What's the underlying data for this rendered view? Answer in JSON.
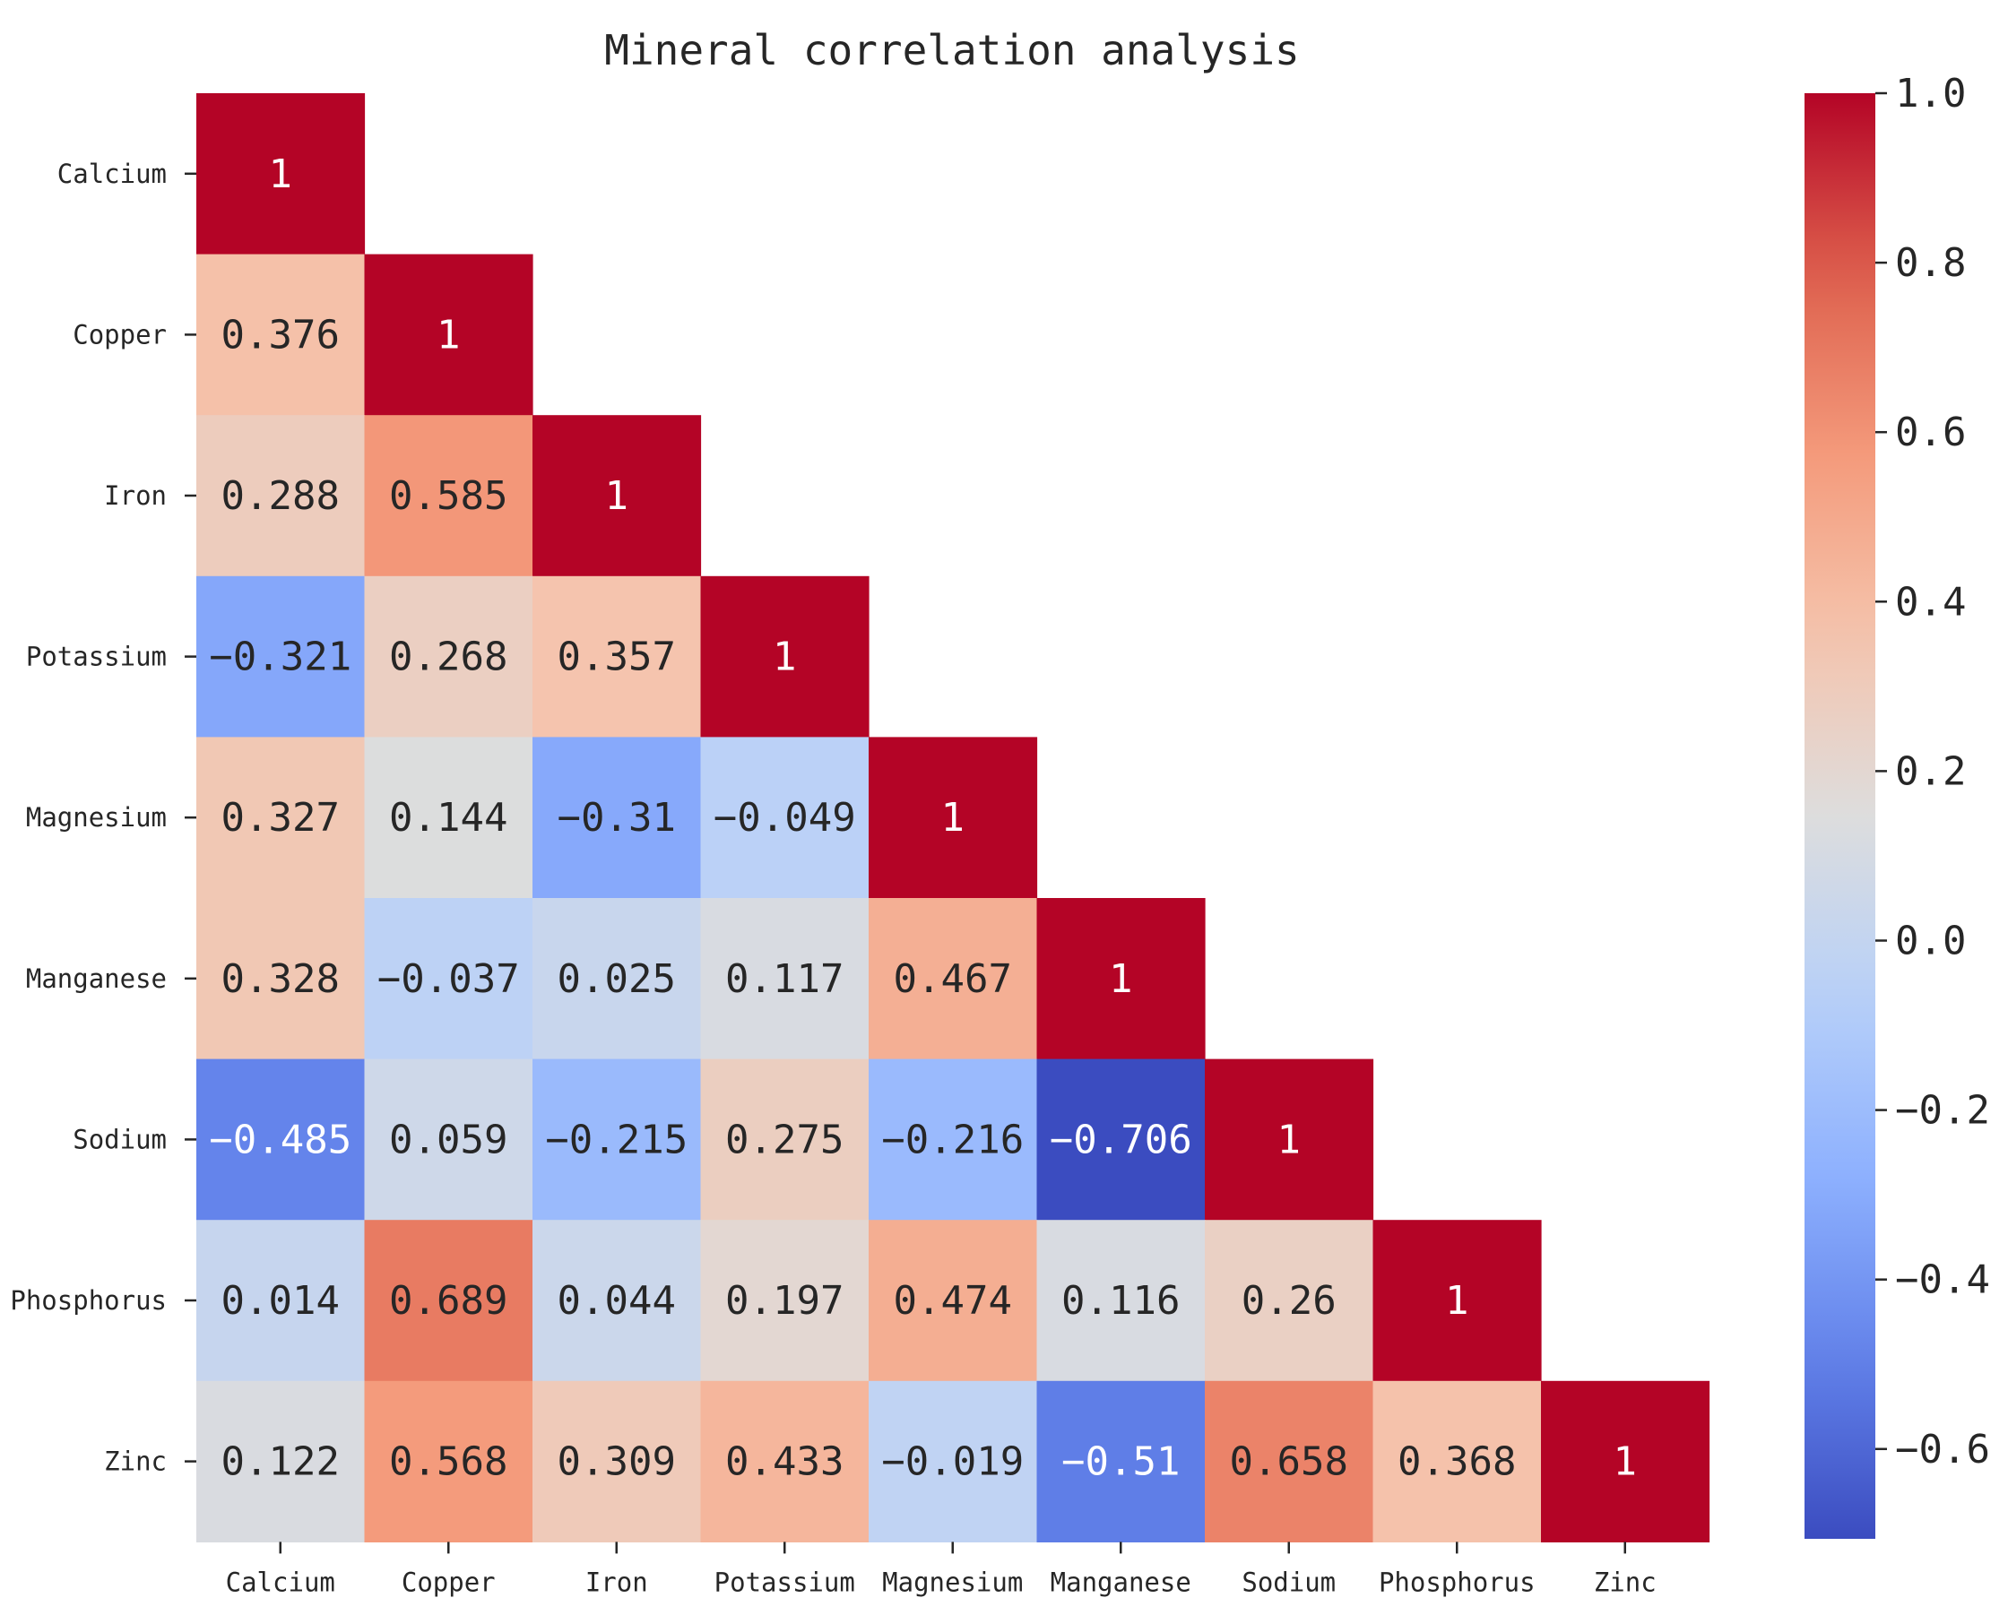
{
  "chart_data": {
    "type": "heatmap",
    "title": "Mineral correlation analysis",
    "xlabel": "",
    "ylabel": "",
    "mask": "upper-triangle",
    "colormap": "coolwarm",
    "vmin": -0.706,
    "vmax": 1.0,
    "categories": [
      "Calcium",
      "Copper",
      "Iron",
      "Potassium",
      "Magnesium",
      "Manganese",
      "Sodium",
      "Phosphorus",
      "Zinc"
    ],
    "matrix": [
      [
        1
      ],
      [
        0.376,
        1
      ],
      [
        0.288,
        0.585,
        1
      ],
      [
        -0.321,
        0.268,
        0.357,
        1
      ],
      [
        0.327,
        0.144,
        -0.31,
        -0.049,
        1
      ],
      [
        0.328,
        -0.037,
        0.025,
        0.117,
        0.467,
        1
      ],
      [
        -0.485,
        0.059,
        -0.215,
        0.275,
        -0.216,
        -0.706,
        1
      ],
      [
        0.014,
        0.689,
        0.044,
        0.197,
        0.474,
        0.116,
        0.26,
        1
      ],
      [
        0.122,
        0.568,
        0.309,
        0.433,
        -0.019,
        -0.51,
        0.658,
        0.368,
        1
      ]
    ],
    "cell_labels": [
      [
        "1"
      ],
      [
        "0.376",
        "1"
      ],
      [
        "0.288",
        "0.585",
        "1"
      ],
      [
        "−0.321",
        "0.268",
        "0.357",
        "1"
      ],
      [
        "0.327",
        "0.144",
        "−0.31",
        "−0.049",
        "1"
      ],
      [
        "0.328",
        "−0.037",
        "0.025",
        "0.117",
        "0.467",
        "1"
      ],
      [
        "−0.485",
        "0.059",
        "−0.215",
        "0.275",
        "−0.216",
        "−0.706",
        "1"
      ],
      [
        "0.014",
        "0.689",
        "0.044",
        "0.197",
        "0.474",
        "0.116",
        "0.26",
        "1"
      ],
      [
        "0.122",
        "0.568",
        "0.309",
        "0.433",
        "−0.019",
        "−0.51",
        "0.658",
        "0.368",
        "1"
      ]
    ],
    "colorbar": {
      "ticks": [
        1.0,
        0.8,
        0.6,
        0.4,
        0.2,
        0.0,
        -0.2,
        -0.4,
        -0.6
      ],
      "tick_labels": [
        "1.0",
        "0.8",
        "0.6",
        "0.4",
        "0.2",
        "0.0",
        "−0.2",
        "−0.4",
        "−0.6"
      ]
    },
    "colors": {
      "low": "#3b4cc0",
      "mid": "#dddddd",
      "high": "#b40426",
      "text_dark": "#262626",
      "text_light": "#ffffff"
    }
  }
}
